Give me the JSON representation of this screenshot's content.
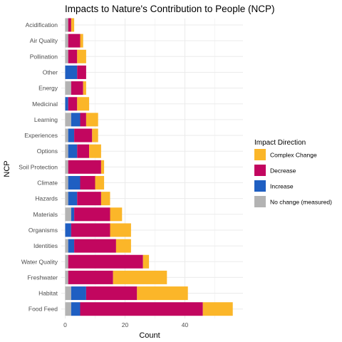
{
  "chart_data": {
    "type": "bar",
    "orientation": "horizontal",
    "stacked": true,
    "title": "Impacts to Nature's Contribution to People (NCP)",
    "xlabel": "Count",
    "ylabel": "NCP",
    "xlim": [
      0,
      58
    ],
    "xticks": [
      0,
      20,
      40
    ],
    "grid": true,
    "legend_title": "Impact Direction",
    "legend_position": "right",
    "categories": [
      "Acidification",
      "Air Quality",
      "Pollination",
      "Other",
      "Energy",
      "Medicinal",
      "Learning",
      "Experiences",
      "Options",
      "Soil Protection",
      "Climate",
      "Hazards",
      "Materials",
      "Organisms",
      "Identities",
      "Water Quality",
      "Freshwater",
      "Habitat",
      "Food Feed"
    ],
    "series": [
      {
        "name": "No change (measured)",
        "color": "#b3b3b3",
        "values": [
          1,
          1,
          1,
          0,
          2,
          0,
          2,
          1,
          1,
          1,
          1,
          1,
          2,
          0,
          1,
          1,
          1,
          2,
          2
        ]
      },
      {
        "name": "Increase",
        "color": "#1f5fc2",
        "values": [
          0,
          0,
          0,
          4,
          0,
          1,
          3,
          2,
          3,
          0,
          4,
          3,
          1,
          2,
          2,
          0,
          0,
          5,
          3
        ]
      },
      {
        "name": "Decrease",
        "color": "#c2065f",
        "values": [
          1,
          4,
          3,
          3,
          4,
          3,
          2,
          6,
          4,
          11,
          5,
          8,
          12,
          13,
          14,
          25,
          15,
          17,
          41
        ]
      },
      {
        "name": "Complex Change",
        "color": "#fbb629",
        "values": [
          1,
          1,
          3,
          0,
          1,
          4,
          4,
          2,
          4,
          1,
          3,
          3,
          4,
          7,
          5,
          2,
          18,
          17,
          10
        ]
      }
    ],
    "legend_order": [
      "Complex Change",
      "Decrease",
      "Increase",
      "No change (measured)"
    ]
  }
}
